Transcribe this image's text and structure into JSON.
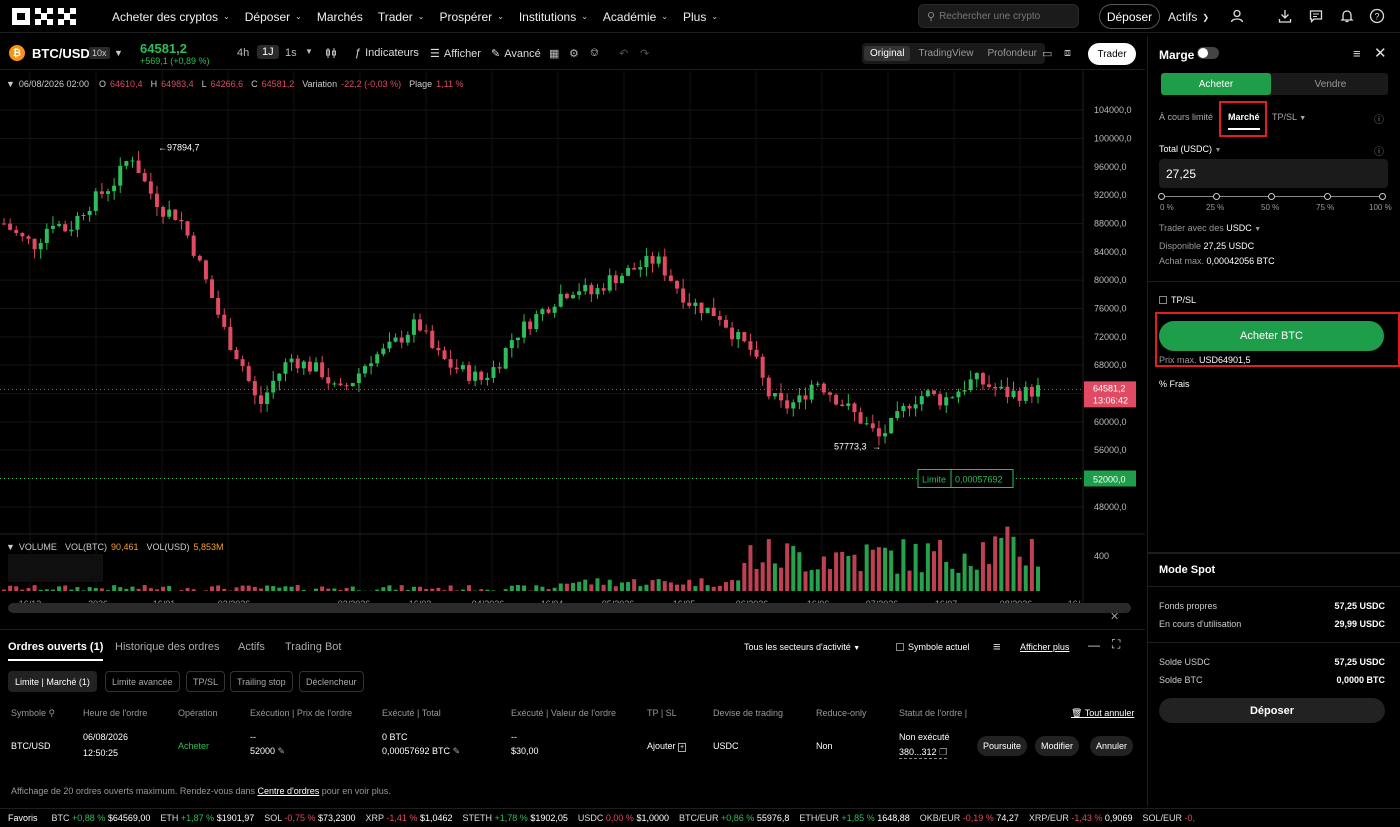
{
  "nav": {
    "items": [
      {
        "label": "Acheter des cryptos",
        "chevron": true
      },
      {
        "label": "Déposer",
        "chevron": true
      },
      {
        "label": "Marchés",
        "chevron": false
      },
      {
        "label": "Trader",
        "chevron": true
      },
      {
        "label": "Prospérer",
        "chevron": true
      },
      {
        "label": "Institutions",
        "chevron": true
      },
      {
        "label": "Académie",
        "chevron": true
      },
      {
        "label": "Plus",
        "chevron": true
      }
    ],
    "search_placeholder": "Rechercher une crypto",
    "deposit": "Déposer",
    "assets": "Actifs"
  },
  "toolbar": {
    "pair": "BTC/USD",
    "leverage": "10x",
    "price": "64581,2",
    "change": "+569,1 (+0,89 %)",
    "intervals": [
      "4h",
      "1J",
      "1s"
    ],
    "indicators": "Indicateurs",
    "display": "Afficher",
    "advanced": "Avancé",
    "views": [
      "Original",
      "TradingView",
      "Profondeur"
    ],
    "trader": "Trader"
  },
  "ohlc": {
    "date": "06/08/2026 02:00",
    "o_label": "O",
    "o": "64610,4",
    "h_label": "H",
    "h": "64983,4",
    "l_label": "L",
    "l": "64266,6",
    "c_label": "C",
    "c": "64581,2",
    "var_label": "Variation",
    "var": "-22,2 (-0,03 %)",
    "range_label": "Plage",
    "range": "1,11 %"
  },
  "chart_data": {
    "type": "candlestick",
    "y_ticks": [
      "104000,0",
      "100000,0",
      "96000,0",
      "92000,0",
      "88000,0",
      "84000,0",
      "80000,0",
      "76000,0",
      "72000,0",
      "68000,0",
      "64000,0",
      "60000,0",
      "56000,0",
      "52000,0",
      "48000,0"
    ],
    "ylim": [
      46000,
      106000
    ],
    "x_ticks": [
      "16/12",
      "2026",
      "16/01",
      "02/2026",
      "03/2026",
      "16/03",
      "04/2026",
      "16/04",
      "05/2026",
      "16/05",
      "06/2026",
      "16/06",
      "07/2026",
      "16/07",
      "08/2026",
      "16/"
    ],
    "close_path": [
      88000,
      86000,
      85000,
      88500,
      87000,
      90000,
      92000,
      94000,
      97894.7,
      93000,
      90000,
      89000,
      84000,
      78000,
      72000,
      68000,
      62000,
      66000,
      69000,
      68000,
      67000,
      64000,
      66000,
      69000,
      70000,
      72000,
      74000,
      70000,
      68000,
      67000,
      66000,
      68000,
      72000,
      74000,
      76000,
      78000,
      79000,
      78000,
      80000,
      81000,
      82000,
      83000,
      80000,
      77000,
      76000,
      75000,
      72000,
      70000,
      64000,
      62000,
      63000,
      66000,
      64000,
      62000,
      60000,
      57773.3,
      60000,
      63000,
      64000,
      63000,
      64500,
      66000,
      65000,
      64000,
      64000,
      64581.2
    ],
    "current_price": "64581,2",
    "countdown": "13:06:42",
    "high_label": "97894,7",
    "low_label": "57773,3",
    "limit_label": "Limite",
    "limit_value": "0,00057692",
    "limit_price": "52000,0",
    "volume": {
      "label": "VOLUME",
      "btc_label": "VOL(BTC)",
      "btc": "90,461",
      "usd_label": "VOL(USD)",
      "usd": "5,853M",
      "tick": "400"
    }
  },
  "panel": {
    "margin": "Marge",
    "buy": "Acheter",
    "sell": "Vendre",
    "order_types": [
      "À cours limité",
      "Marché",
      "TP/SL"
    ],
    "total_label": "Total (USDC)",
    "total_value": "27,25",
    "pcts": [
      "0 %",
      "25 %",
      "50 %",
      "75 %",
      "100 %"
    ],
    "trade_with_label": "Trader avec des",
    "trade_with": "USDC",
    "available_label": "Disponible",
    "available": "27,25 USDC",
    "maxbuy_label": "Achat max.",
    "maxbuy": "0,00042056 BTC",
    "tpsl": "TP/SL",
    "buy_btn": "Acheter BTC",
    "max_price_label": "Prix max.",
    "max_price": "USD64901,5",
    "fees": "Frais",
    "spot_mode": "Mode Spot",
    "equity_label": "Fonds propres",
    "equity": "57,25 USDC",
    "inuse_label": "En cours d'utilisation",
    "inuse": "29,99 USDC",
    "bal_usdc_label": "Solde USDC",
    "bal_usdc": "57,25 USDC",
    "bal_btc_label": "Solde BTC",
    "bal_btc": "0,0000 BTC",
    "deposit": "Déposer"
  },
  "orders": {
    "tabs": [
      "Ordres ouverts (1)",
      "Historique des ordres",
      "Actifs",
      "Trading Bot"
    ],
    "sector": "Tous les secteurs d'activité",
    "current_symbol": "Symbole actuel",
    "show_more": "Afficher plus",
    "chips": [
      "Limite | Marché (1)",
      "Limite avancée",
      "TP/SL",
      "Trailing stop",
      "Déclencheur"
    ],
    "headers": [
      "Symbole",
      "Heure de l'ordre",
      "Opération",
      "Exécution | Prix de l'ordre",
      "Exécuté | Total",
      "Exécuté | Valeur de l'ordre",
      "TP | SL",
      "Devise de trading",
      "Reduce-only",
      "Statut de l'ordre |"
    ],
    "cancel_all": "Tout annuler",
    "row": {
      "symbol": "BTC/USD",
      "date": "06/08/2026",
      "time": "12:50:25",
      "op": "Acheter",
      "exec": "--",
      "price": "52000",
      "executed": "0 BTC",
      "total": "0,00057692 BTC",
      "exec_value": "--",
      "value": "$30,00",
      "tpsl": "Ajouter",
      "currency": "USDC",
      "reduce": "Non",
      "status": "Non exécuté",
      "order_id": "380...312",
      "btns": [
        "Poursuite",
        "Modifier",
        "Annuler"
      ]
    },
    "footer_pre": "Affichage de 20 ordres ouverts maximum. Rendez-vous dans ",
    "footer_link": "Centre d'ordres",
    "footer_post": " pour en voir plus."
  },
  "ticker": {
    "label": "Favoris",
    "items": [
      {
        "s": "BTC",
        "c": "+0,88 %",
        "p": "$64569,00",
        "up": true
      },
      {
        "s": "ETH",
        "c": "+1,87 %",
        "p": "$1901,97",
        "up": true
      },
      {
        "s": "SOL",
        "c": "-0,75 %",
        "p": "$73,2300",
        "up": false
      },
      {
        "s": "XRP",
        "c": "-1,41 %",
        "p": "$1,0462",
        "up": false
      },
      {
        "s": "STETH",
        "c": "+1,78 %",
        "p": "$1902,05",
        "up": true
      },
      {
        "s": "USDC",
        "c": "0,00 %",
        "p": "$1,0000",
        "up": false
      },
      {
        "s": "BTC/EUR",
        "c": "+0,86 %",
        "p": "55976,8",
        "up": true
      },
      {
        "s": "ETH/EUR",
        "c": "+1,85 %",
        "p": "1648,88",
        "up": true
      },
      {
        "s": "OKB/EUR",
        "c": "-0,19 %",
        "p": "74,27",
        "up": false
      },
      {
        "s": "XRP/EUR",
        "c": "-1,43 %",
        "p": "0,9069",
        "up": false
      },
      {
        "s": "SOL/EUR",
        "c": "-0,",
        "p": "",
        "up": false
      }
    ]
  },
  "colors": {
    "up": "#2ebd5a",
    "down": "#e04a62",
    "accent": "#1e9e4a"
  }
}
